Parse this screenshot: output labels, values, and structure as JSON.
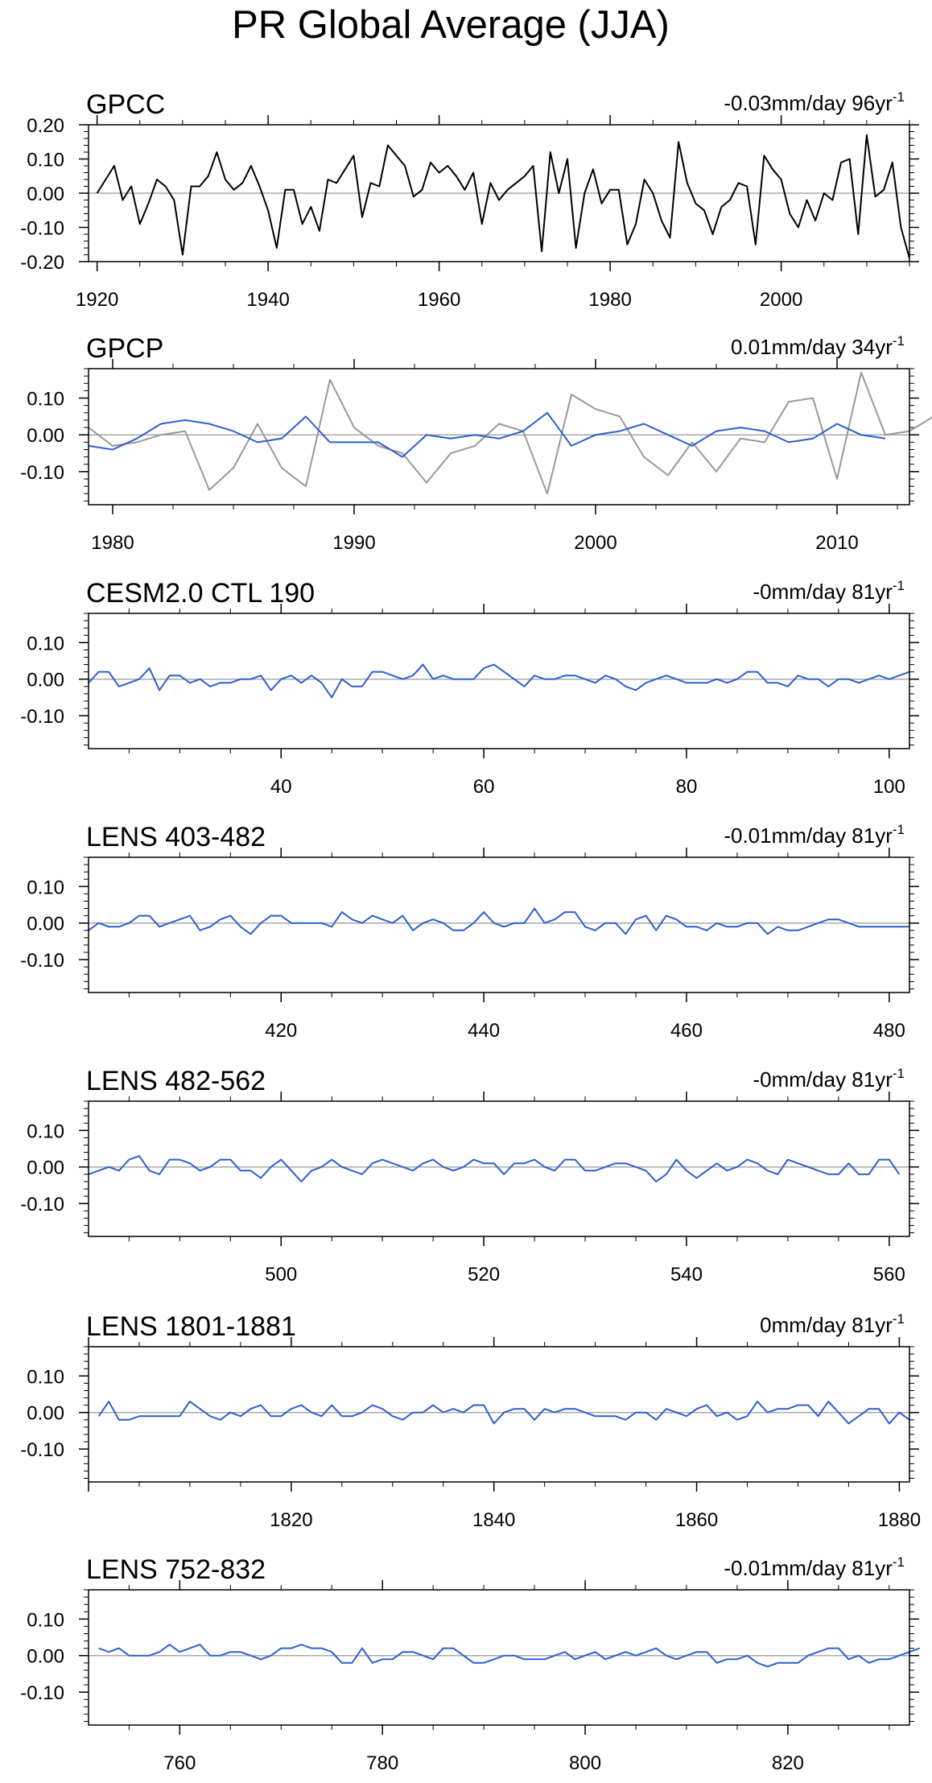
{
  "title": "PR Global Average (JJA)",
  "chart_data": [
    {
      "type": "line",
      "title": "GPCC",
      "trend_text": "-0.03mm/day 96yr",
      "trend_superscript": "-1",
      "x_range": [
        1919,
        2015
      ],
      "ylim": [
        -0.2,
        0.2
      ],
      "ytick_values": [
        -0.2,
        -0.1,
        0.0,
        0.1,
        0.2
      ],
      "ytick_labels": [
        "-0.20",
        "-0.10",
        "0.00",
        "0.10",
        "0.20"
      ],
      "xtick_values": [
        1920,
        1940,
        1960,
        1980,
        2000
      ],
      "xtick_labels": [
        "1920",
        "1940",
        "1960",
        "1980",
        "2000"
      ],
      "series": [
        {
          "color": "#000000",
          "x_start": 1920,
          "values": [
            0.0,
            0.04,
            0.08,
            -0.02,
            0.02,
            -0.09,
            -0.03,
            0.04,
            0.02,
            -0.02,
            -0.18,
            0.02,
            0.02,
            0.05,
            0.12,
            0.04,
            0.01,
            0.03,
            0.08,
            0.02,
            -0.05,
            -0.16,
            0.01,
            0.01,
            -0.09,
            -0.04,
            -0.11,
            0.04,
            0.03,
            0.07,
            0.11,
            -0.07,
            0.03,
            0.02,
            0.14,
            0.11,
            0.08,
            -0.01,
            0.01,
            0.09,
            0.06,
            0.08,
            0.05,
            0.01,
            0.06,
            -0.09,
            0.03,
            -0.02,
            0.01,
            0.03,
            0.05,
            0.08,
            -0.17,
            0.12,
            0.0,
            0.1,
            -0.16,
            0.0,
            0.07,
            -0.03,
            0.01,
            0.01,
            -0.15,
            -0.09,
            0.04,
            0.0,
            -0.08,
            -0.13,
            0.15,
            0.03,
            -0.03,
            -0.05,
            -0.12,
            -0.04,
            -0.02,
            0.03,
            0.02,
            -0.15,
            0.11,
            0.07,
            0.04,
            -0.06,
            -0.1,
            -0.02,
            -0.08,
            0.0,
            -0.02,
            0.09,
            0.1,
            -0.12,
            0.17,
            -0.01,
            0.01,
            0.09,
            -0.1,
            -0.19
          ]
        }
      ]
    },
    {
      "type": "line",
      "title": "GPCP",
      "trend_text": "0.01mm/day 34yr",
      "trend_superscript": "-1",
      "x_range": [
        1979,
        2013
      ],
      "ylim": [
        -0.19,
        0.18
      ],
      "ytick_values": [
        -0.1,
        0.0,
        0.1
      ],
      "ytick_labels": [
        "-0.10",
        "0.00",
        "0.10"
      ],
      "xtick_values": [
        1980,
        1990,
        2000,
        2010
      ],
      "xtick_labels": [
        "1980",
        "1990",
        "2000",
        "2010"
      ],
      "series": [
        {
          "color": "#999999",
          "x_start": 1979,
          "values": [
            0.02,
            -0.03,
            -0.02,
            0.0,
            0.01,
            -0.15,
            -0.09,
            0.03,
            -0.09,
            -0.14,
            0.15,
            0.02,
            -0.03,
            -0.05,
            -0.13,
            -0.05,
            -0.03,
            0.03,
            0.01,
            -0.16,
            0.11,
            0.07,
            0.05,
            -0.06,
            -0.11,
            -0.02,
            -0.1,
            -0.01,
            -0.02,
            0.09,
            0.1,
            -0.12,
            0.17,
            0.0,
            0.01,
            0.05
          ]
        },
        {
          "color": "#2d5fd0",
          "x_start": 1979,
          "values": [
            -0.03,
            -0.04,
            -0.01,
            0.03,
            0.04,
            0.03,
            0.01,
            -0.02,
            -0.01,
            0.05,
            -0.02,
            -0.02,
            -0.02,
            -0.06,
            0.0,
            -0.01,
            0.0,
            -0.01,
            0.01,
            0.06,
            -0.03,
            0.0,
            0.01,
            0.03,
            0.0,
            -0.03,
            0.01,
            0.02,
            0.01,
            -0.02,
            -0.01,
            0.03,
            0.0,
            -0.01
          ]
        }
      ]
    },
    {
      "type": "line",
      "title": "CESM2.0 CTL 190",
      "trend_text": "-0mm/day 81yr",
      "trend_superscript": "-1",
      "x_range": [
        21,
        102
      ],
      "ylim": [
        -0.19,
        0.18
      ],
      "ytick_values": [
        -0.1,
        0.0,
        0.1
      ],
      "ytick_labels": [
        "-0.10",
        "0.00",
        "0.10"
      ],
      "xtick_values": [
        40,
        60,
        80,
        100
      ],
      "xtick_labels": [
        "40",
        "60",
        "80",
        "100"
      ],
      "series": [
        {
          "color": "#2d5fd0",
          "x_start": 21,
          "values": [
            -0.01,
            0.02,
            0.02,
            -0.02,
            -0.01,
            0.0,
            0.03,
            -0.03,
            0.01,
            0.01,
            -0.01,
            0.0,
            -0.02,
            -0.01,
            -0.01,
            0.0,
            0.0,
            0.01,
            -0.03,
            0.0,
            0.01,
            -0.01,
            0.01,
            -0.01,
            -0.05,
            0.0,
            -0.02,
            -0.02,
            0.02,
            0.02,
            0.01,
            0.0,
            0.01,
            0.04,
            0.0,
            0.01,
            0.0,
            0.0,
            0.0,
            0.03,
            0.04,
            0.02,
            0.0,
            -0.02,
            0.01,
            0.0,
            0.0,
            0.01,
            0.01,
            0.0,
            -0.01,
            0.01,
            0.0,
            -0.02,
            -0.03,
            -0.01,
            0.0,
            0.01,
            0.0,
            -0.01,
            -0.01,
            -0.01,
            0.0,
            -0.01,
            0.0,
            0.02,
            0.02,
            -0.01,
            -0.01,
            -0.02,
            0.01,
            0.0,
            0.0,
            -0.02,
            0.0,
            0.0,
            -0.01,
            0.0,
            0.01,
            0.0,
            0.01,
            0.02
          ]
        }
      ]
    },
    {
      "type": "line",
      "title": "LENS 403-482",
      "trend_text": "-0.01mm/day 81yr",
      "trend_superscript": "-1",
      "x_range": [
        401,
        482
      ],
      "ylim": [
        -0.19,
        0.18
      ],
      "ytick_values": [
        -0.1,
        0.0,
        0.1
      ],
      "ytick_labels": [
        "-0.10",
        "0.00",
        "0.10"
      ],
      "xtick_values": [
        420,
        440,
        460,
        480
      ],
      "xtick_labels": [
        "420",
        "440",
        "460",
        "480"
      ],
      "series": [
        {
          "color": "#2d5fd0",
          "x_start": 401,
          "values": [
            -0.02,
            0.0,
            -0.01,
            -0.01,
            0.0,
            0.02,
            0.02,
            -0.01,
            0.0,
            0.01,
            0.02,
            -0.02,
            -0.01,
            0.01,
            0.02,
            -0.01,
            -0.03,
            0.0,
            0.02,
            0.02,
            0.0,
            0.0,
            0.0,
            0.0,
            -0.01,
            0.03,
            0.01,
            0.0,
            0.02,
            0.01,
            0.0,
            0.02,
            -0.02,
            0.0,
            0.01,
            0.0,
            -0.02,
            -0.02,
            0.0,
            0.03,
            0.0,
            -0.01,
            0.0,
            0.0,
            0.04,
            0.0,
            0.01,
            0.03,
            0.03,
            -0.01,
            -0.02,
            0.0,
            0.0,
            -0.03,
            0.01,
            0.02,
            -0.02,
            0.02,
            0.01,
            -0.01,
            -0.01,
            -0.02,
            0.0,
            -0.01,
            -0.01,
            0.0,
            0.0,
            -0.03,
            -0.01,
            -0.02,
            -0.02,
            -0.01,
            0.0,
            0.01,
            0.01,
            0.0,
            -0.01,
            -0.01,
            -0.01,
            -0.01,
            -0.01,
            -0.01
          ]
        }
      ]
    },
    {
      "type": "line",
      "title": "LENS 482-562",
      "trend_text": "-0mm/day 81yr",
      "trend_superscript": "-1",
      "x_range": [
        481,
        562
      ],
      "ylim": [
        -0.19,
        0.18
      ],
      "ytick_values": [
        -0.1,
        0.0,
        0.1
      ],
      "ytick_labels": [
        "-0.10",
        "0.00",
        "0.10"
      ],
      "xtick_values": [
        500,
        520,
        540,
        560
      ],
      "xtick_labels": [
        "500",
        "520",
        "540",
        "560"
      ],
      "series": [
        {
          "color": "#2d5fd0",
          "x_start": 481,
          "values": [
            -0.02,
            -0.01,
            0.0,
            -0.01,
            0.02,
            0.03,
            -0.01,
            -0.02,
            0.02,
            0.02,
            0.01,
            -0.01,
            0.0,
            0.02,
            0.02,
            -0.01,
            -0.01,
            -0.03,
            0.0,
            0.02,
            -0.01,
            -0.04,
            -0.01,
            0.0,
            0.02,
            0.0,
            -0.01,
            -0.02,
            0.01,
            0.02,
            0.01,
            0.0,
            -0.01,
            0.01,
            0.02,
            0.0,
            -0.01,
            0.0,
            0.02,
            0.01,
            0.01,
            -0.02,
            0.01,
            0.01,
            0.02,
            0.0,
            -0.01,
            0.02,
            0.02,
            -0.01,
            -0.01,
            0.0,
            0.01,
            0.01,
            0.0,
            -0.01,
            -0.04,
            -0.02,
            0.02,
            -0.01,
            -0.03,
            -0.01,
            0.01,
            -0.01,
            0.0,
            0.02,
            0.01,
            -0.01,
            -0.02,
            0.02,
            0.01,
            0.0,
            -0.01,
            -0.02,
            -0.02,
            0.01,
            -0.02,
            -0.02,
            0.02,
            0.02,
            -0.02
          ]
        }
      ]
    },
    {
      "type": "line",
      "title": "LENS 1801-1881",
      "trend_text": "0mm/day 81yr",
      "trend_superscript": "-1",
      "x_range": [
        1800,
        1881
      ],
      "ylim": [
        -0.19,
        0.18
      ],
      "ytick_values": [
        -0.1,
        0.0,
        0.1
      ],
      "ytick_labels": [
        "-0.10",
        "0.00",
        "0.10"
      ],
      "xtick_values": [
        1820,
        1840,
        1860,
        1880
      ],
      "xtick_labels": [
        "1820",
        "1840",
        "1860",
        "1880"
      ],
      "series": [
        {
          "color": "#2d5fd0",
          "x_start": 1801,
          "values": [
            -0.01,
            0.03,
            -0.02,
            -0.02,
            -0.01,
            -0.01,
            -0.01,
            -0.01,
            -0.01,
            0.03,
            0.01,
            -0.01,
            -0.02,
            0.0,
            -0.01,
            0.01,
            0.02,
            -0.01,
            -0.01,
            0.01,
            0.02,
            0.0,
            -0.01,
            0.02,
            -0.01,
            -0.01,
            0.0,
            0.02,
            0.01,
            -0.01,
            -0.02,
            0.0,
            0.0,
            0.02,
            0.0,
            0.01,
            0.0,
            0.02,
            0.02,
            -0.03,
            0.0,
            0.01,
            0.01,
            -0.02,
            0.01,
            0.0,
            0.01,
            0.01,
            0.0,
            -0.01,
            -0.01,
            -0.01,
            -0.02,
            0.0,
            0.0,
            -0.02,
            0.01,
            0.0,
            -0.01,
            0.01,
            0.02,
            -0.01,
            0.0,
            -0.02,
            -0.01,
            0.03,
            0.0,
            0.01,
            0.01,
            0.02,
            0.02,
            -0.01,
            0.03,
            0.0,
            -0.03,
            -0.01,
            0.01,
            0.01,
            -0.03,
            0.0,
            -0.02
          ]
        }
      ]
    },
    {
      "type": "line",
      "title": "LENS 752-832",
      "trend_text": "-0.01mm/day 81yr",
      "trend_superscript": "-1",
      "x_range": [
        751,
        832
      ],
      "ylim": [
        -0.19,
        0.18
      ],
      "ytick_values": [
        -0.1,
        0.0,
        0.1
      ],
      "ytick_labels": [
        "-0.10",
        "0.00",
        "0.10"
      ],
      "xtick_values": [
        760,
        780,
        800,
        820
      ],
      "xtick_labels": [
        "760",
        "780",
        "800",
        "820"
      ],
      "series": [
        {
          "color": "#2d5fd0",
          "x_start": 752,
          "values": [
            0.02,
            0.01,
            0.02,
            0.0,
            0.0,
            0.0,
            0.01,
            0.03,
            0.01,
            0.02,
            0.03,
            0.0,
            0.0,
            0.01,
            0.01,
            0.0,
            -0.01,
            0.0,
            0.02,
            0.02,
            0.03,
            0.02,
            0.02,
            0.01,
            -0.02,
            -0.02,
            0.02,
            -0.02,
            -0.01,
            -0.01,
            0.01,
            0.01,
            0.0,
            -0.01,
            0.02,
            0.02,
            0.0,
            -0.02,
            -0.02,
            -0.01,
            0.0,
            0.0,
            -0.01,
            -0.01,
            -0.01,
            0.0,
            0.01,
            -0.01,
            0.0,
            0.01,
            -0.01,
            0.0,
            0.01,
            0.0,
            0.01,
            0.02,
            0.0,
            -0.01,
            0.0,
            0.01,
            0.01,
            -0.02,
            -0.01,
            -0.01,
            0.0,
            -0.02,
            -0.03,
            -0.02,
            -0.02,
            -0.02,
            0.0,
            0.01,
            0.02,
            0.02,
            -0.01,
            0.0,
            -0.02,
            -0.01,
            -0.01,
            0.0,
            0.01,
            0.02
          ]
        }
      ]
    }
  ]
}
